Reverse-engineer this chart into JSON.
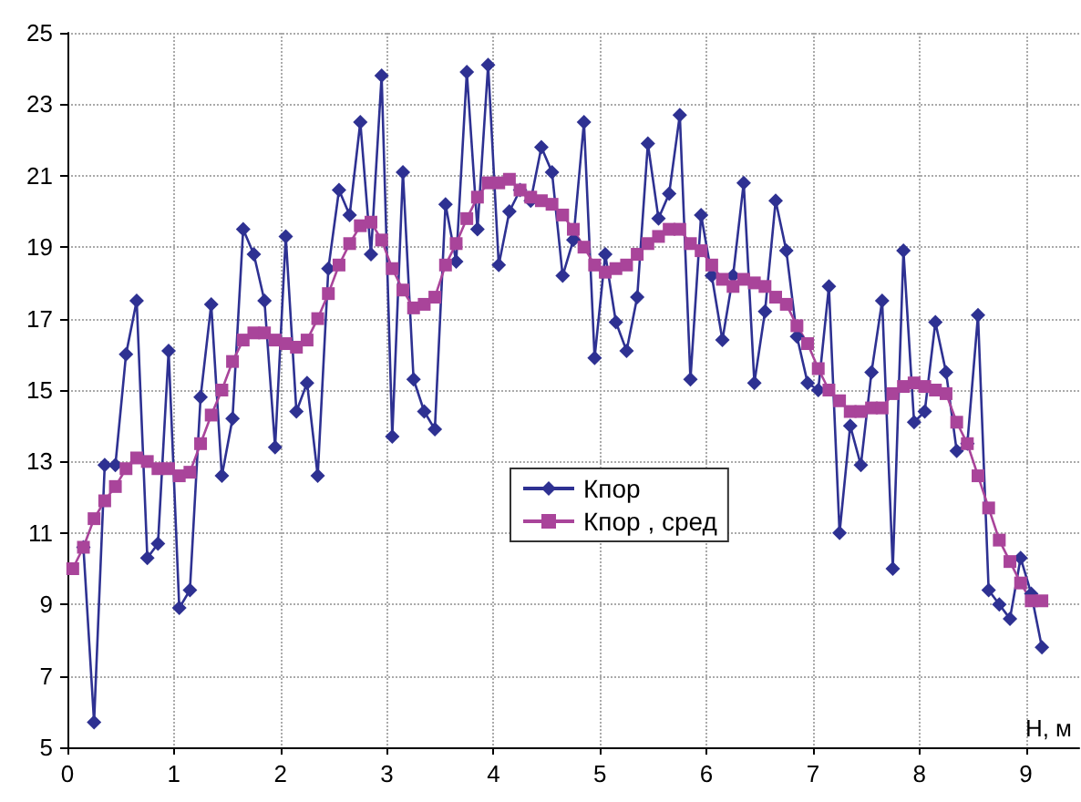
{
  "chart_data": {
    "type": "line",
    "xlabel": "H, м",
    "xlim": [
      0,
      9.5
    ],
    "xticks": [
      0,
      1,
      2,
      3,
      4,
      5,
      6,
      7,
      8,
      9
    ],
    "ylim": [
      5,
      25
    ],
    "yticks": [
      5,
      7,
      9,
      11,
      13,
      15,
      17,
      19,
      21,
      23,
      25
    ],
    "grid": true,
    "legend": "center",
    "series": [
      {
        "name": "Кпор",
        "color": "#2e3192",
        "marker": "diamond",
        "x": [
          0.15,
          0.25,
          0.35,
          0.45,
          0.55,
          0.65,
          0.75,
          0.85,
          0.95,
          1.05,
          1.15,
          1.25,
          1.35,
          1.45,
          1.55,
          1.65,
          1.75,
          1.85,
          1.95,
          2.05,
          2.15,
          2.25,
          2.35,
          2.45,
          2.55,
          2.65,
          2.75,
          2.85,
          2.95,
          3.05,
          3.15,
          3.25,
          3.35,
          3.45,
          3.55,
          3.65,
          3.75,
          3.85,
          3.95,
          4.05,
          4.15,
          4.25,
          4.35,
          4.45,
          4.55,
          4.65,
          4.75,
          4.85,
          4.95,
          5.05,
          5.15,
          5.25,
          5.35,
          5.45,
          5.55,
          5.65,
          5.75,
          5.85,
          5.95,
          6.05,
          6.15,
          6.25,
          6.35,
          6.45,
          6.55,
          6.65,
          6.75,
          6.85,
          6.95,
          7.05,
          7.15,
          7.25,
          7.35,
          7.45,
          7.55,
          7.65,
          7.75,
          7.85,
          7.95,
          8.05,
          8.15,
          8.25,
          8.35,
          8.45,
          8.55,
          8.65,
          8.75,
          8.85,
          8.95,
          9.05,
          9.15
        ],
        "values": [
          10.6,
          5.7,
          12.9,
          12.9,
          16.0,
          17.5,
          10.3,
          10.7,
          16.1,
          8.9,
          9.4,
          14.8,
          17.4,
          12.6,
          14.2,
          19.5,
          18.8,
          17.5,
          13.4,
          19.3,
          14.4,
          15.2,
          12.6,
          18.4,
          20.6,
          19.9,
          22.5,
          18.8,
          23.8,
          13.7,
          21.1,
          15.3,
          14.4,
          13.9,
          20.2,
          18.6,
          23.9,
          19.5,
          24.1,
          18.5,
          20.0,
          20.6,
          20.3,
          21.8,
          21.1,
          18.2,
          19.2,
          22.5,
          15.9,
          18.8,
          16.9,
          16.1,
          17.6,
          21.9,
          19.8,
          20.5,
          22.7,
          15.3,
          19.9,
          18.2,
          16.4,
          18.2,
          20.8,
          15.2,
          17.2,
          20.3,
          18.9,
          16.5,
          15.2,
          15.0,
          17.9,
          11.0,
          14.0,
          12.9,
          15.5,
          17.5,
          10.0,
          18.9,
          14.1,
          14.4,
          16.9,
          15.5,
          13.3,
          13.5,
          17.1,
          9.4,
          9.0,
          8.6,
          10.3,
          9.3,
          7.8
        ]
      },
      {
        "name": "Кпор , сред",
        "color": "#a9449a",
        "marker": "square",
        "x": [
          0.05,
          0.15,
          0.25,
          0.35,
          0.45,
          0.55,
          0.65,
          0.75,
          0.85,
          0.95,
          1.05,
          1.15,
          1.25,
          1.35,
          1.45,
          1.55,
          1.65,
          1.75,
          1.85,
          1.95,
          2.05,
          2.15,
          2.25,
          2.35,
          2.45,
          2.55,
          2.65,
          2.75,
          2.85,
          2.95,
          3.05,
          3.15,
          3.25,
          3.35,
          3.45,
          3.55,
          3.65,
          3.75,
          3.85,
          3.95,
          4.05,
          4.15,
          4.25,
          4.35,
          4.45,
          4.55,
          4.65,
          4.75,
          4.85,
          4.95,
          5.05,
          5.15,
          5.25,
          5.35,
          5.45,
          5.55,
          5.65,
          5.75,
          5.85,
          5.95,
          6.05,
          6.15,
          6.25,
          6.35,
          6.45,
          6.55,
          6.65,
          6.75,
          6.85,
          6.95,
          7.05,
          7.15,
          7.25,
          7.35,
          7.45,
          7.55,
          7.65,
          7.75,
          7.85,
          7.95,
          8.05,
          8.15,
          8.25,
          8.35,
          8.45,
          8.55,
          8.65,
          8.75,
          8.85,
          8.95,
          9.05,
          9.15
        ],
        "values": [
          10.0,
          10.6,
          11.4,
          11.9,
          12.3,
          12.8,
          13.1,
          13.0,
          12.8,
          12.8,
          12.6,
          12.7,
          13.5,
          14.3,
          15.0,
          15.8,
          16.4,
          16.6,
          16.6,
          16.4,
          16.3,
          16.2,
          16.4,
          17.0,
          17.7,
          18.5,
          19.1,
          19.6,
          19.7,
          19.2,
          18.4,
          17.8,
          17.3,
          17.4,
          17.6,
          18.5,
          19.1,
          19.8,
          20.4,
          20.8,
          20.8,
          20.9,
          20.6,
          20.4,
          20.3,
          20.2,
          19.9,
          19.5,
          19.0,
          18.5,
          18.3,
          18.4,
          18.5,
          18.8,
          19.1,
          19.3,
          19.5,
          19.5,
          19.1,
          18.9,
          18.5,
          18.1,
          17.9,
          18.1,
          18.0,
          17.9,
          17.6,
          17.4,
          16.8,
          16.3,
          15.6,
          15.0,
          14.7,
          14.4,
          14.4,
          14.5,
          14.5,
          14.9,
          15.1,
          15.2,
          15.1,
          15.0,
          14.9,
          14.1,
          13.5,
          12.6,
          11.7,
          10.8,
          10.2,
          9.6,
          9.1,
          9.1
        ]
      }
    ]
  }
}
